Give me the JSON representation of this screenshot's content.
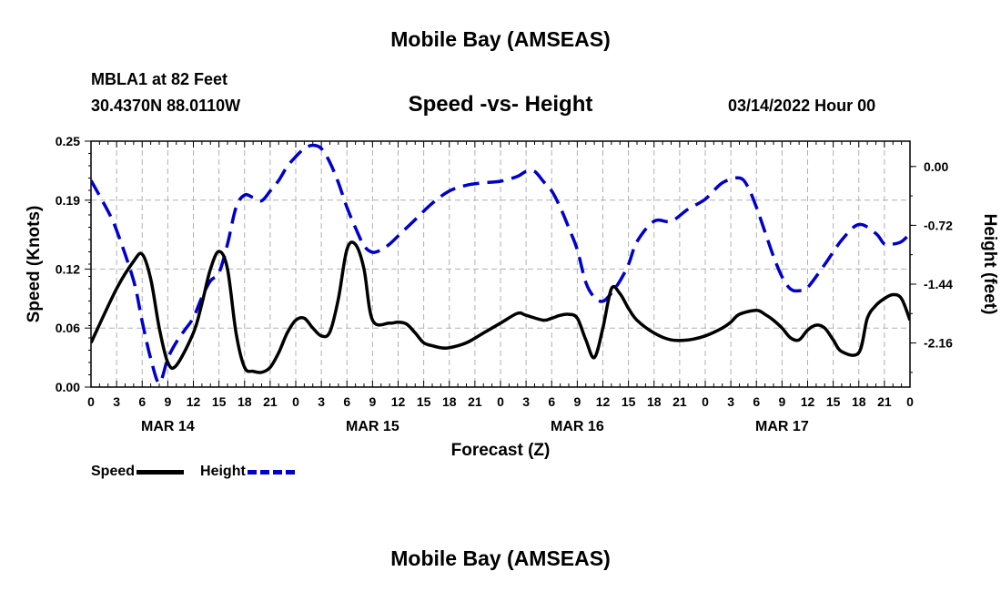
{
  "header": {
    "title": "Mobile Bay (AMSEAS)",
    "station": "MBLA1 at 82 Feet",
    "coords": "30.4370N  88.0110W",
    "subtitle": "Speed -vs- Height",
    "datetime": "03/14/2022 Hour 00"
  },
  "footer": {
    "title": "Mobile Bay (AMSEAS)"
  },
  "legend": [
    {
      "label": "Speed",
      "color": "#000000",
      "style": "solid"
    },
    {
      "label": "Height",
      "color": "#0000cc",
      "style": "dashed"
    }
  ],
  "chart_data": {
    "type": "line",
    "title": "Speed -vs- Height",
    "xlabel": "Forecast (Z)",
    "ylabel_left": "Speed (Knots)",
    "ylabel_right": "Height (feet)",
    "x_range_hours": [
      0,
      96
    ],
    "ylim_left": [
      0,
      0.25
    ],
    "ylim_right": [
      -2.7,
      0.31
    ],
    "left_ticks": [
      "0.00",
      "0.06",
      "0.12",
      "0.19",
      "0.25"
    ],
    "right_ticks": [
      "-2.16",
      "-1.44",
      "-0.72",
      "0.00"
    ],
    "x_tick_labels": [
      "0",
      "3",
      "6",
      "9",
      "12",
      "15",
      "18",
      "21",
      "0",
      "3",
      "6",
      "9",
      "12",
      "15",
      "18",
      "21",
      "0",
      "3",
      "6",
      "9",
      "12",
      "15",
      "18",
      "21",
      "0",
      "3",
      "6",
      "9",
      "12",
      "15",
      "18",
      "21",
      "0"
    ],
    "day_labels": [
      {
        "label": "MAR 14",
        "hour": 9
      },
      {
        "label": "MAR 15",
        "hour": 33
      },
      {
        "label": "MAR 16",
        "hour": 57
      },
      {
        "label": "MAR 17",
        "hour": 81
      }
    ],
    "grid": true,
    "series": [
      {
        "name": "Speed",
        "axis": "left",
        "color": "#000000",
        "dash": "solid",
        "x": [
          0,
          3,
          5,
          6,
          7,
          8,
          9,
          10,
          12,
          13,
          14,
          15,
          16,
          17,
          18,
          19,
          20,
          21,
          22,
          23,
          24,
          25,
          26,
          27,
          28,
          29,
          30,
          31,
          32,
          33,
          35,
          36,
          37,
          38,
          39,
          40,
          41,
          42,
          44,
          46,
          48,
          50,
          51,
          53,
          54,
          55,
          56,
          57,
          58,
          59,
          60,
          61,
          62,
          63,
          64,
          66,
          68,
          70,
          72,
          74,
          75,
          76,
          78,
          79,
          80,
          81,
          82,
          83,
          84,
          85,
          86,
          87,
          88,
          90,
          91,
          92,
          93,
          94,
          95,
          96
        ],
        "y": [
          0.045,
          0.1,
          0.128,
          0.135,
          0.11,
          0.06,
          0.025,
          0.022,
          0.055,
          0.085,
          0.12,
          0.138,
          0.12,
          0.055,
          0.02,
          0.016,
          0.015,
          0.02,
          0.035,
          0.055,
          0.068,
          0.07,
          0.06,
          0.052,
          0.056,
          0.09,
          0.14,
          0.145,
          0.12,
          0.068,
          0.065,
          0.066,
          0.064,
          0.055,
          0.045,
          0.042,
          0.04,
          0.04,
          0.045,
          0.055,
          0.065,
          0.075,
          0.073,
          0.068,
          0.07,
          0.073,
          0.074,
          0.07,
          0.048,
          0.03,
          0.06,
          0.1,
          0.095,
          0.08,
          0.068,
          0.055,
          0.048,
          0.048,
          0.052,
          0.06,
          0.066,
          0.074,
          0.078,
          0.074,
          0.068,
          0.06,
          0.05,
          0.048,
          0.058,
          0.063,
          0.06,
          0.048,
          0.036,
          0.035,
          0.07,
          0.083,
          0.09,
          0.094,
          0.09,
          0.068
        ]
      },
      {
        "name": "Height",
        "axis": "right",
        "color": "#0000cc",
        "dash": "dashed",
        "x": [
          0,
          2,
          3,
          5,
          6,
          7,
          8,
          9,
          10,
          11,
          12,
          13,
          14,
          15,
          16,
          17,
          18,
          19,
          20,
          21,
          22,
          23,
          24,
          25,
          26,
          27,
          28,
          29,
          30,
          31,
          32,
          33,
          34,
          35,
          36,
          38,
          40,
          42,
          44,
          46,
          48,
          50,
          51,
          52,
          53,
          54,
          55,
          56,
          57,
          58,
          59,
          60,
          61,
          62,
          63,
          64,
          66,
          68,
          70,
          72,
          74,
          76,
          77,
          78,
          79,
          80,
          81,
          82,
          83,
          84,
          86,
          88,
          90,
          92,
          93,
          94,
          95,
          96
        ],
        "y": [
          -0.17,
          -0.55,
          -0.78,
          -1.4,
          -1.9,
          -2.35,
          -2.65,
          -2.35,
          -2.15,
          -2.0,
          -1.85,
          -1.6,
          -1.4,
          -1.3,
          -0.95,
          -0.5,
          -0.35,
          -0.38,
          -0.42,
          -0.3,
          -0.17,
          0.0,
          0.12,
          0.22,
          0.26,
          0.22,
          0.05,
          -0.2,
          -0.5,
          -0.75,
          -0.97,
          -1.05,
          -1.02,
          -0.95,
          -0.85,
          -0.65,
          -0.45,
          -0.3,
          -0.23,
          -0.2,
          -0.18,
          -0.12,
          -0.06,
          -0.06,
          -0.18,
          -0.3,
          -0.5,
          -0.75,
          -1.02,
          -1.42,
          -1.6,
          -1.65,
          -1.55,
          -1.4,
          -1.2,
          -0.92,
          -0.67,
          -0.67,
          -0.52,
          -0.4,
          -0.2,
          -0.14,
          -0.25,
          -0.5,
          -0.8,
          -1.1,
          -1.35,
          -1.5,
          -1.52,
          -1.48,
          -1.2,
          -0.9,
          -0.71,
          -0.82,
          -0.95,
          -0.95,
          -0.92,
          -0.82
        ]
      }
    ]
  }
}
